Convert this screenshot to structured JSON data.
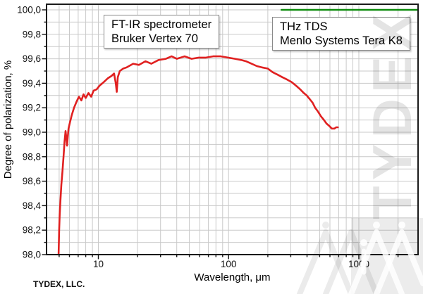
{
  "watermark": {
    "text": "TYDEX"
  },
  "footer": {
    "credit": "TYDEX, LLC."
  },
  "annotation_boxes": [
    {
      "lines": [
        "FT-IR spectrometer",
        "Bruker Vertex 70"
      ]
    },
    {
      "lines": [
        "THz TDS",
        "Menlo Systems Tera K8"
      ]
    }
  ],
  "chart_data": {
    "type": "line",
    "title": "",
    "xlabel": "Wavelength, μm",
    "ylabel": "Degree of polarization, %",
    "x_scale": "log",
    "xlim": [
      4,
      2850
    ],
    "ylim": [
      98.0,
      100.046
    ],
    "grid": true,
    "x_major_ticks": [
      10,
      100,
      1000
    ],
    "x_major_labels": [
      "10",
      "100",
      "1000"
    ],
    "x_minor_ticks": [
      5,
      6,
      7,
      8,
      9,
      20,
      30,
      40,
      50,
      60,
      70,
      80,
      90,
      200,
      300,
      400,
      500,
      600,
      700,
      800,
      900,
      2000
    ],
    "y_major_ticks": [
      98.0,
      98.2,
      98.4,
      98.6,
      98.8,
      99.0,
      99.2,
      99.4,
      99.6,
      99.8,
      100.0
    ],
    "y_major_labels": [
      "98,0",
      "98,2",
      "98,4",
      "98,6",
      "98,8",
      "99,0",
      "99,2",
      "99,4",
      "99,6",
      "99,8",
      "100,0"
    ],
    "y_minor_ticks": [
      98.1,
      98.3,
      98.5,
      98.7,
      98.9,
      99.1,
      99.3,
      99.5,
      99.7,
      99.9
    ],
    "colors": {
      "grid": "#c9c9c9",
      "frame": "#1a1a1a",
      "ftir": "#e02020",
      "thz": "#0e8c0e"
    },
    "series": [
      {
        "key": "ftir",
        "instrument": "FT-IR spectrometer Bruker Vertex 70",
        "points": [
          [
            4.95,
            98.0
          ],
          [
            5.0,
            98.2
          ],
          [
            5.05,
            98.33
          ],
          [
            5.12,
            98.45
          ],
          [
            5.2,
            98.57
          ],
          [
            5.3,
            98.68
          ],
          [
            5.4,
            98.8
          ],
          [
            5.5,
            98.92
          ],
          [
            5.6,
            99.01
          ],
          [
            5.7,
            98.94
          ],
          [
            5.75,
            98.89
          ],
          [
            5.82,
            98.96
          ],
          [
            5.9,
            99.03
          ],
          [
            6.05,
            99.08
          ],
          [
            6.25,
            99.14
          ],
          [
            6.5,
            99.2
          ],
          [
            6.8,
            99.25
          ],
          [
            7.1,
            99.29
          ],
          [
            7.4,
            99.26
          ],
          [
            7.7,
            99.31
          ],
          [
            8.0,
            99.28
          ],
          [
            8.4,
            99.32
          ],
          [
            8.8,
            99.29
          ],
          [
            9.2,
            99.34
          ],
          [
            9.7,
            99.35
          ],
          [
            10.2,
            99.38
          ],
          [
            11.0,
            99.41
          ],
          [
            11.8,
            99.44
          ],
          [
            12.6,
            99.46
          ],
          [
            13.2,
            99.48
          ],
          [
            13.6,
            99.4
          ],
          [
            13.85,
            99.33
          ],
          [
            14.1,
            99.45
          ],
          [
            14.6,
            99.5
          ],
          [
            15.5,
            99.52
          ],
          [
            16.5,
            99.53
          ],
          [
            18.5,
            99.56
          ],
          [
            20.5,
            99.55
          ],
          [
            23,
            99.58
          ],
          [
            25.5,
            99.56
          ],
          [
            29,
            99.59
          ],
          [
            33,
            99.6
          ],
          [
            36.5,
            99.62
          ],
          [
            40,
            99.6
          ],
          [
            46,
            99.62
          ],
          [
            52,
            99.6
          ],
          [
            59,
            99.61
          ],
          [
            67,
            99.61
          ],
          [
            76,
            99.62
          ],
          [
            87,
            99.62
          ],
          [
            99,
            99.61
          ],
          [
            112,
            99.6
          ],
          [
            125,
            99.59
          ],
          [
            136,
            99.58
          ],
          [
            150,
            99.56
          ],
          [
            165,
            99.54
          ],
          [
            180,
            99.53
          ],
          [
            200,
            99.52
          ],
          [
            218,
            99.49
          ],
          [
            238,
            99.47
          ],
          [
            258,
            99.45
          ],
          [
            282,
            99.43
          ],
          [
            305,
            99.41
          ],
          [
            330,
            99.38
          ],
          [
            355,
            99.35
          ],
          [
            378,
            99.32
          ],
          [
            398,
            99.3
          ],
          [
            420,
            99.27
          ],
          [
            442,
            99.24
          ],
          [
            462,
            99.2
          ],
          [
            485,
            99.17
          ],
          [
            512,
            99.13
          ],
          [
            540,
            99.1
          ],
          [
            565,
            99.07
          ],
          [
            595,
            99.05
          ],
          [
            620,
            99.03
          ],
          [
            650,
            99.03
          ],
          [
            670,
            99.04
          ],
          [
            690,
            99.04
          ]
        ]
      },
      {
        "key": "thz",
        "instrument": "THz TDS Menlo Systems Tera K8",
        "points": [
          [
            255,
            100.0
          ],
          [
            2820,
            100.0
          ]
        ]
      }
    ]
  }
}
